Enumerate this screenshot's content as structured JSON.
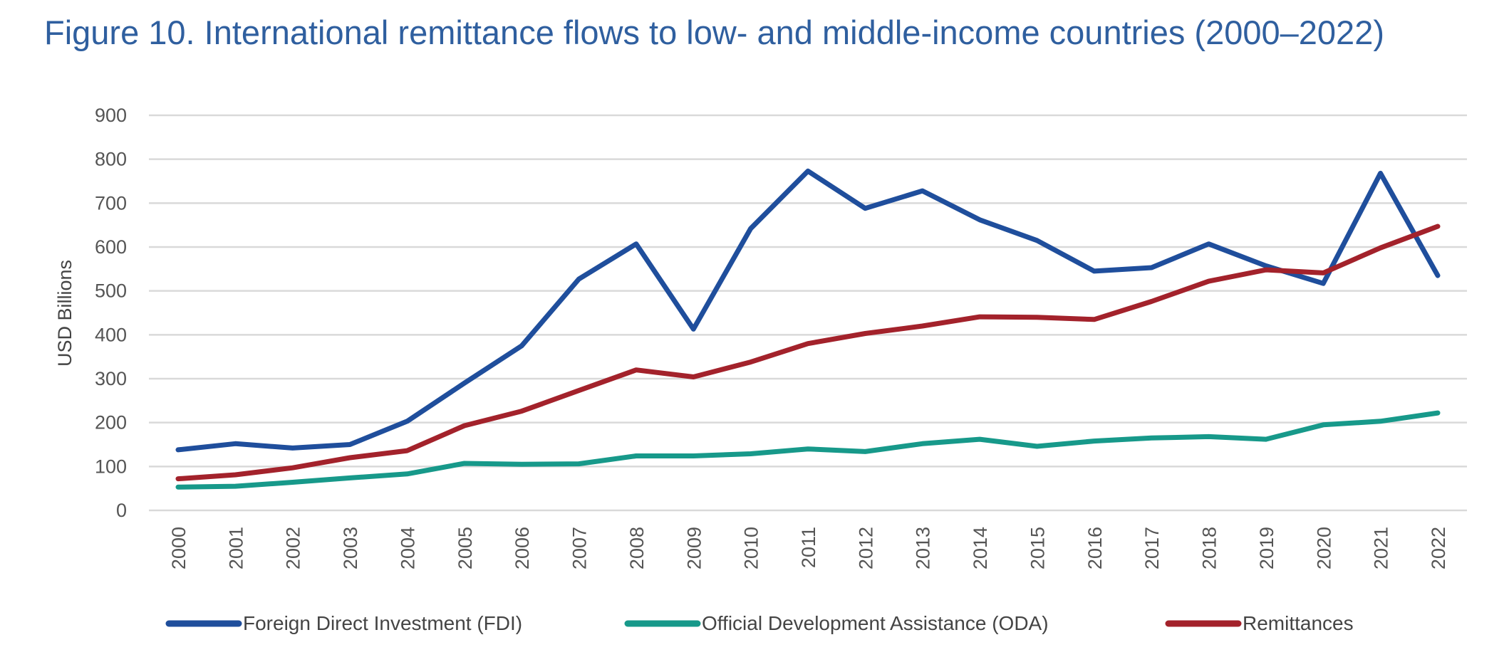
{
  "chart_data": {
    "type": "line",
    "title": "Figure 10. International remittance flows to low- and middle-income countries (2000–2022)",
    "xlabel": "",
    "ylabel": "USD Billions",
    "ylim": [
      0,
      900
    ],
    "yticks": [
      0,
      100,
      200,
      300,
      400,
      500,
      600,
      700,
      800,
      900
    ],
    "grid": true,
    "legend_position": "bottom",
    "x": [
      "2000",
      "2001",
      "2002",
      "2003",
      "2004",
      "2005",
      "2006",
      "2007",
      "2008",
      "2009",
      "2010",
      "2011",
      "2012",
      "2013",
      "2014",
      "2015",
      "2016",
      "2017",
      "2018",
      "2019",
      "2020",
      "2021",
      "2022"
    ],
    "series": [
      {
        "name": "Foreign Direct Investment (FDI)",
        "color": "#1f4e9c",
        "values": [
          138,
          152,
          142,
          150,
          203,
          290,
          375,
          527,
          607,
          413,
          642,
          773,
          688,
          728,
          662,
          615,
          545,
          553,
          607,
          557,
          517,
          768,
          535
        ]
      },
      {
        "name": "Official Development Assistance (ODA)",
        "color": "#17998a",
        "values": [
          53,
          55,
          64,
          74,
          83,
          107,
          105,
          106,
          124,
          124,
          129,
          140,
          134,
          152,
          162,
          146,
          158,
          165,
          168,
          162,
          195,
          203,
          222
        ]
      },
      {
        "name": "Remittances",
        "color": "#a3222b",
        "values": [
          72,
          81,
          97,
          120,
          136,
          193,
          226,
          273,
          320,
          304,
          338,
          380,
          403,
          420,
          441,
          440,
          435,
          476,
          522,
          548,
          541,
          598,
          647
        ]
      }
    ]
  }
}
